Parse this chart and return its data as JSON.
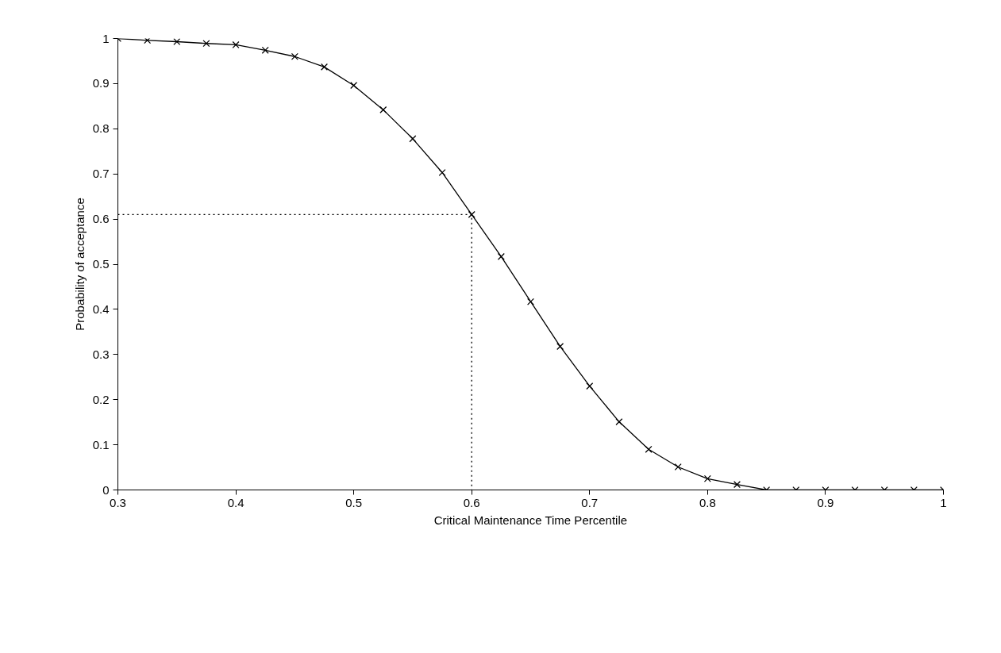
{
  "chart_data": {
    "type": "line",
    "xlabel": "Critical Maintenance Time Percentile",
    "ylabel": "Probability of acceptance",
    "xlim": [
      0.3,
      1
    ],
    "ylim": [
      0,
      1
    ],
    "xticks": [
      0.3,
      0.4,
      0.5,
      0.6,
      0.7,
      0.8,
      0.9,
      1
    ],
    "yticks": [
      0,
      0.1,
      0.2,
      0.3,
      0.4,
      0.5,
      0.6,
      0.7,
      0.8,
      0.9,
      1
    ],
    "series": [
      {
        "color": "#000000",
        "marker": "cross",
        "line_style": "solid",
        "x": [
          0.3,
          0.325,
          0.35,
          0.375,
          0.4,
          0.425,
          0.45,
          0.475,
          0.5,
          0.525,
          0.55,
          0.575,
          0.6,
          0.625,
          0.65,
          0.675,
          0.7,
          0.725,
          0.75,
          0.775,
          0.8,
          0.825,
          0.85,
          0.875,
          0.9,
          0.925,
          0.95,
          0.975,
          1
        ],
        "values": [
          1.0,
          0.996,
          0.993,
          0.989,
          0.986,
          0.974,
          0.96,
          0.937,
          0.896,
          0.842,
          0.778,
          0.703,
          0.61,
          0.517,
          0.417,
          0.318,
          0.23,
          0.151,
          0.09,
          0.051,
          0.025,
          0.012,
          0,
          0,
          0,
          0,
          0,
          0,
          0
        ]
      },
      {
        "color": "#000000",
        "marker": "none",
        "line_style": "dotted",
        "x": [
          0.3,
          0.6,
          0.6
        ],
        "values": [
          0.61,
          0.61,
          0
        ]
      }
    ]
  }
}
